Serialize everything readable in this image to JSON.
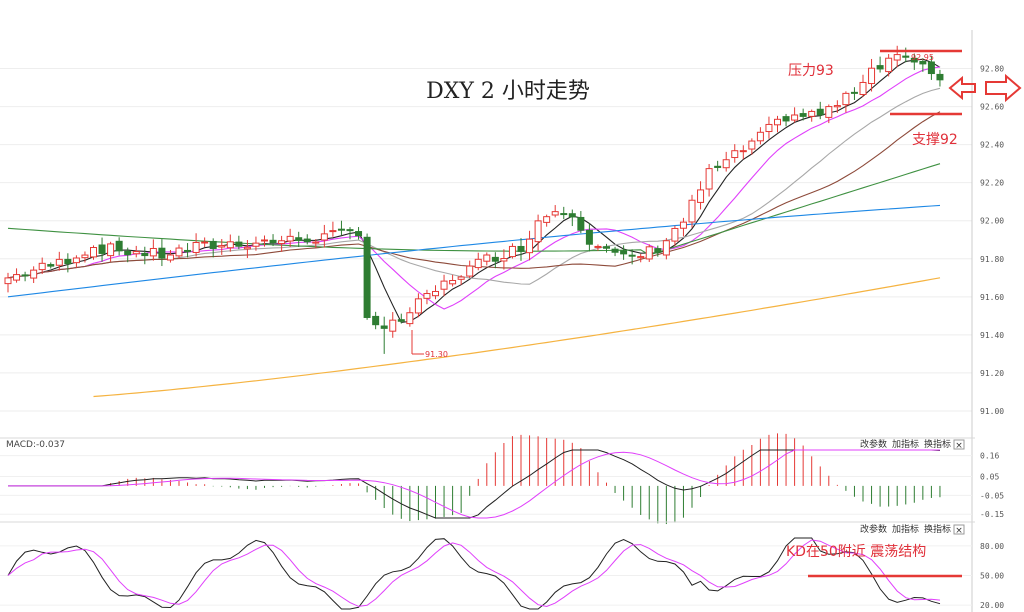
{
  "chart_data": [
    {
      "type": "candlestick",
      "title": "DXY 2 小时走势",
      "ylim": [
        90.9,
        92.95
      ],
      "y_ticks": [
        "92.80",
        "92.60",
        "92.40",
        "92.20",
        "92.00",
        "91.80",
        "91.60",
        "91.40",
        "91.20",
        "91.00"
      ],
      "low_marker": "91.30",
      "high_marker": "92.95",
      "annotations": {
        "resistance": "压力93",
        "support": "支撑92"
      },
      "colors": {
        "up": "#e53935",
        "down": "#2e7d32",
        "ma5": "#222222",
        "ma10": "#e040fb",
        "ma20": "#a8a8a8",
        "ma30": "#8d4a3a",
        "ma60": "#3f9142",
        "ma120": "#1e88e5",
        "ma250": "#f5b341"
      }
    },
    {
      "type": "line",
      "label": "MACD:-0.037",
      "ylim": [
        -0.17,
        0.19
      ],
      "y_ticks": [
        "0.16",
        "0.05",
        "-0.05",
        "-0.15"
      ],
      "buttons": [
        "改参数",
        "加指标",
        "换指标"
      ],
      "close_label": "×"
    },
    {
      "type": "line",
      "ylim": [
        15,
        90
      ],
      "y_ticks": [
        "80.00",
        "50.00",
        "20.00"
      ],
      "buttons": [
        "改参数",
        "加指标",
        "换指标"
      ],
      "close_label": "×",
      "annotation": "KD在50附近 震荡结构"
    }
  ]
}
